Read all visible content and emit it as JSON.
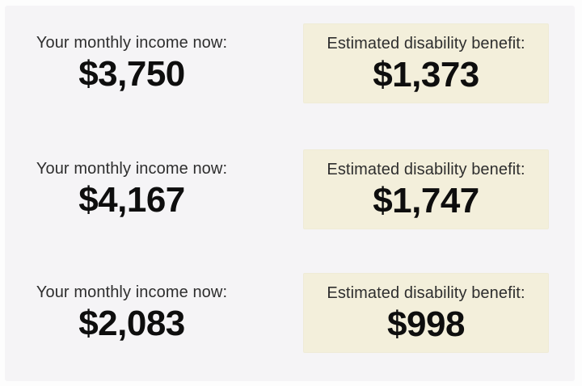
{
  "colors": {
    "page_background": "#fdfdfd",
    "panel_background": "#f5f4f6",
    "benefit_box_background": "#f3efdb",
    "label_text": "#2e2e2e",
    "value_text": "#0e0e0e"
  },
  "rows": [
    {
      "income_label": "Your monthly income now:",
      "income_value": "$3,750",
      "benefit_label": "Estimated disability benefit:",
      "benefit_value": "$1,373"
    },
    {
      "income_label": "Your monthly income now:",
      "income_value": "$4,167",
      "benefit_label": "Estimated disability benefit:",
      "benefit_value": "$1,747"
    },
    {
      "income_label": "Your monthly income now:",
      "income_value": "$2,083",
      "benefit_label": "Estimated disability benefit:",
      "benefit_value": "$998"
    }
  ]
}
